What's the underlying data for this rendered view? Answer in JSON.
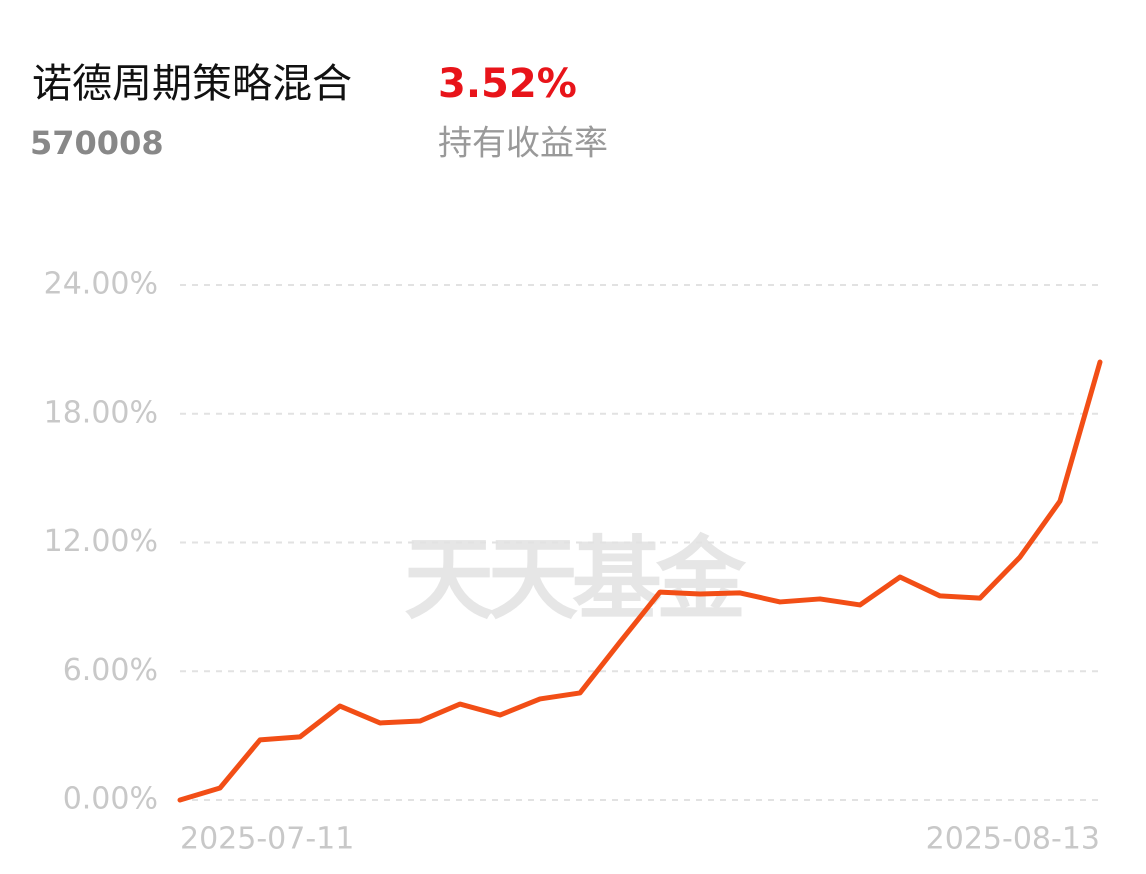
{
  "header": {
    "title": "诺德周期策略混合",
    "code": "570008",
    "return": "3.52%",
    "return_label": "持有收益率"
  },
  "watermark": "天天基金",
  "chart_data": {
    "type": "line",
    "categories": [
      "2025-07-11",
      null,
      null,
      null,
      null,
      null,
      null,
      null,
      null,
      null,
      null,
      null,
      null,
      null,
      null,
      null,
      null,
      null,
      null,
      null,
      null,
      null,
      null,
      "2025-08-13"
    ],
    "values": [
      0,
      0.56,
      2.8,
      2.94,
      4.38,
      3.59,
      3.68,
      4.47,
      3.96,
      4.71,
      4.99,
      7.36,
      9.69,
      9.6,
      9.65,
      9.23,
      9.37,
      9.09,
      10.39,
      9.51,
      9.41,
      11.32,
      13.93,
      20.41
    ],
    "color": "#f24e16",
    "ylim": [
      0,
      24
    ],
    "yticks": [
      {
        "value": 0,
        "label": "0.00%"
      },
      {
        "value": 6,
        "label": "6.00%"
      },
      {
        "value": 12,
        "label": "12.00%"
      },
      {
        "value": 18,
        "label": "18.00%"
      },
      {
        "value": 24,
        "label": "24.00%"
      }
    ],
    "grid": true
  }
}
